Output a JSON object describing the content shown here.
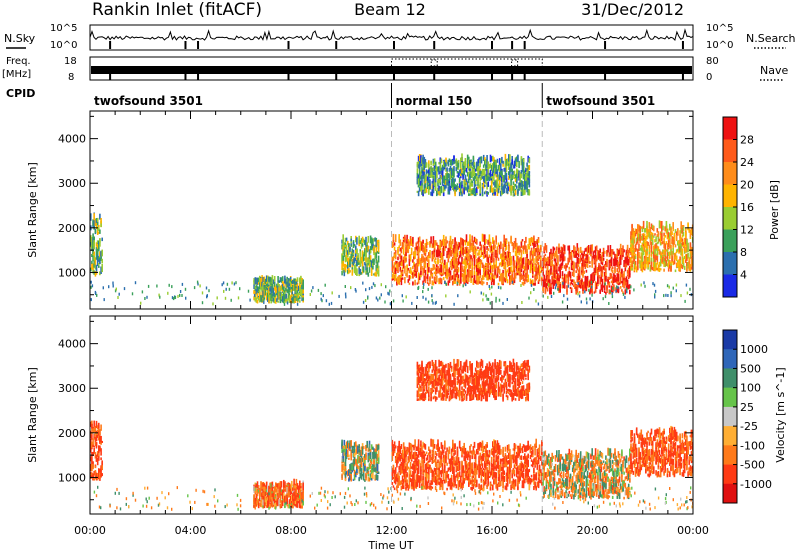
{
  "header": {
    "station": "Rankin Inlet (fitACF)",
    "beam": "Beam 12",
    "date": "31/Dec/2012"
  },
  "summary": {
    "nsky_label": "N.Sky",
    "nsky_ticks": [
      "10^5",
      "10^0"
    ],
    "nsearch_label": "N.Search",
    "freq_label_1": "Freq.",
    "freq_label_2": "[MHz]",
    "freq_ticks": [
      "18",
      "8"
    ],
    "nave_label": "Nave",
    "nave_ticks": [
      "80",
      "0"
    ],
    "cpid_label": "CPID",
    "modes": [
      {
        "name": "twofsound 3501",
        "start_h": 0,
        "end_h": 12
      },
      {
        "name": "normal 150",
        "start_h": 12,
        "end_h": 18
      },
      {
        "name": "twofsound 3501",
        "start_h": 18,
        "end_h": 24
      }
    ],
    "mode_change_hours": [
      12,
      18
    ]
  },
  "chart_data": [
    {
      "type": "heatmap",
      "panel": "power",
      "ylabel": "Slant Range [km]",
      "ylim": [
        180,
        4620
      ],
      "yticks": [
        1000,
        2000,
        3000,
        4000
      ],
      "xlim": [
        0,
        24
      ],
      "colorbar_label": "Power [dB]",
      "colorbar_ticks": [
        "28",
        "24",
        "20",
        "16",
        "12",
        "8",
        "4"
      ],
      "colors_high_to_low": [
        "#ee1111",
        "#ff5a1a",
        "#ff8c1a",
        "#ffb400",
        "#9acd32",
        "#3aa05a",
        "#2b6fae",
        "#1a2ae6"
      ],
      "regions": [
        {
          "h0": 0.0,
          "h1": 0.5,
          "r0": 900,
          "r1": 2200,
          "value": 12
        },
        {
          "h0": 6.5,
          "h1": 8.5,
          "r0": 300,
          "r1": 800,
          "value": 12
        },
        {
          "h0": 10.0,
          "h1": 11.5,
          "r0": 900,
          "r1": 1700,
          "value": 12
        },
        {
          "h0": 12.0,
          "h1": 18.0,
          "r0": 700,
          "r1": 1700,
          "value": 24
        },
        {
          "h0": 13.0,
          "h1": 17.5,
          "r0": 2700,
          "r1": 3500,
          "value": 10
        },
        {
          "h0": 18.0,
          "h1": 21.5,
          "r0": 500,
          "r1": 1500,
          "value": 28
        },
        {
          "h0": 21.5,
          "h1": 24.0,
          "r0": 1000,
          "r1": 2000,
          "value": 20
        }
      ]
    },
    {
      "type": "heatmap",
      "panel": "velocity",
      "ylabel": "Slant Range [km]",
      "xlabel": "Time UT",
      "ylim": [
        180,
        4620
      ],
      "yticks": [
        1000,
        2000,
        3000,
        4000
      ],
      "xlim": [
        0,
        24
      ],
      "xtick_labels": [
        "00:00",
        "04:00",
        "08:00",
        "12:00",
        "16:00",
        "20:00",
        "00:00"
      ],
      "colorbar_label": "Velocity [m s^-1]",
      "colorbar_ticks": [
        "1000",
        "500",
        "100",
        "25",
        "-25",
        "-100",
        "-500",
        "-1000"
      ],
      "colors_high_to_low": [
        "#1a3aa6",
        "#2f66b8",
        "#3f8f6a",
        "#66c44a",
        "#c8c8c8",
        "#ffae33",
        "#ff7a1a",
        "#ff3a14",
        "#e01010"
      ],
      "regions": [
        {
          "h0": 0.0,
          "h1": 0.5,
          "r0": 900,
          "r1": 2200,
          "value": -300
        },
        {
          "h0": 6.5,
          "h1": 8.5,
          "r0": 300,
          "r1": 800,
          "value": -200
        },
        {
          "h0": 10.0,
          "h1": 11.5,
          "r0": 900,
          "r1": 1700,
          "value": 50
        },
        {
          "h0": 12.0,
          "h1": 18.0,
          "r0": 700,
          "r1": 1700,
          "value": -300
        },
        {
          "h0": 13.0,
          "h1": 17.5,
          "r0": 2700,
          "r1": 3500,
          "value": -400
        },
        {
          "h0": 18.0,
          "h1": 21.5,
          "r0": 500,
          "r1": 1500,
          "value": -50
        },
        {
          "h0": 21.5,
          "h1": 24.0,
          "r0": 1000,
          "r1": 2000,
          "value": -300
        }
      ]
    }
  ]
}
